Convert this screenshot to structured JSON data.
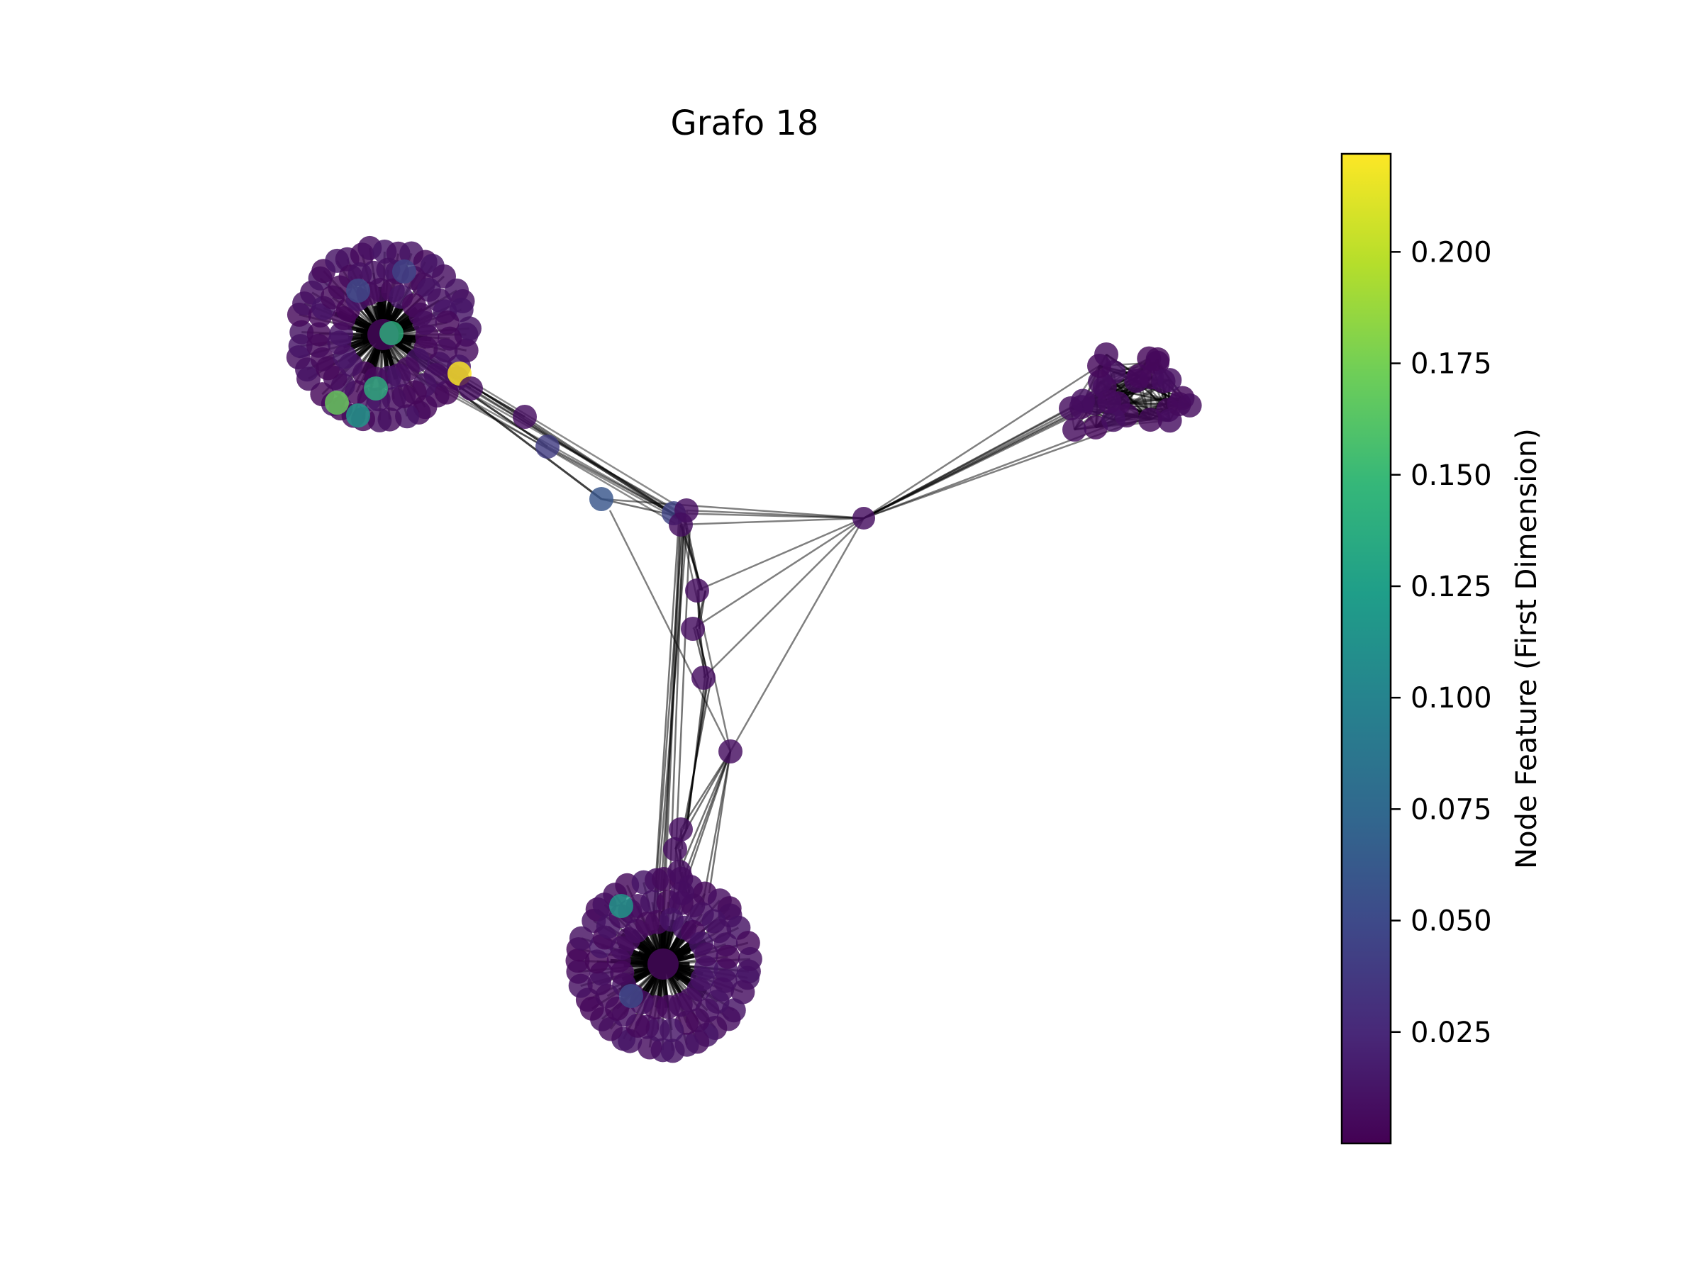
{
  "figure": {
    "title": "Grafo 18"
  },
  "colorbar": {
    "label": "Node Feature (First Dimension)",
    "ticks": [
      "0.025",
      "0.050",
      "0.075",
      "0.100",
      "0.125",
      "0.150",
      "0.175",
      "0.200"
    ],
    "tick_values": [
      0.025,
      0.05,
      0.075,
      0.1,
      0.125,
      0.15,
      0.175,
      0.2
    ],
    "range": [
      0.0,
      0.222
    ],
    "colormap": "viridis",
    "colors": [
      "#440154",
      "#482878",
      "#3e4989",
      "#31688e",
      "#26828e",
      "#1f9e89",
      "#35b779",
      "#6ece58",
      "#b5de2b",
      "#fde725"
    ]
  },
  "graph": {
    "node_color_default": "#440154",
    "edge_color": "#000000",
    "clusters": [
      {
        "id": "cluster-top-left",
        "nodes": 120
      },
      {
        "id": "cluster-bottom",
        "nodes": 120
      },
      {
        "id": "cluster-right",
        "nodes": 25
      }
    ],
    "highlight_values": [
      0.222,
      0.17,
      0.14,
      0.12,
      0.06,
      0.05,
      0.045,
      0.04
    ]
  }
}
